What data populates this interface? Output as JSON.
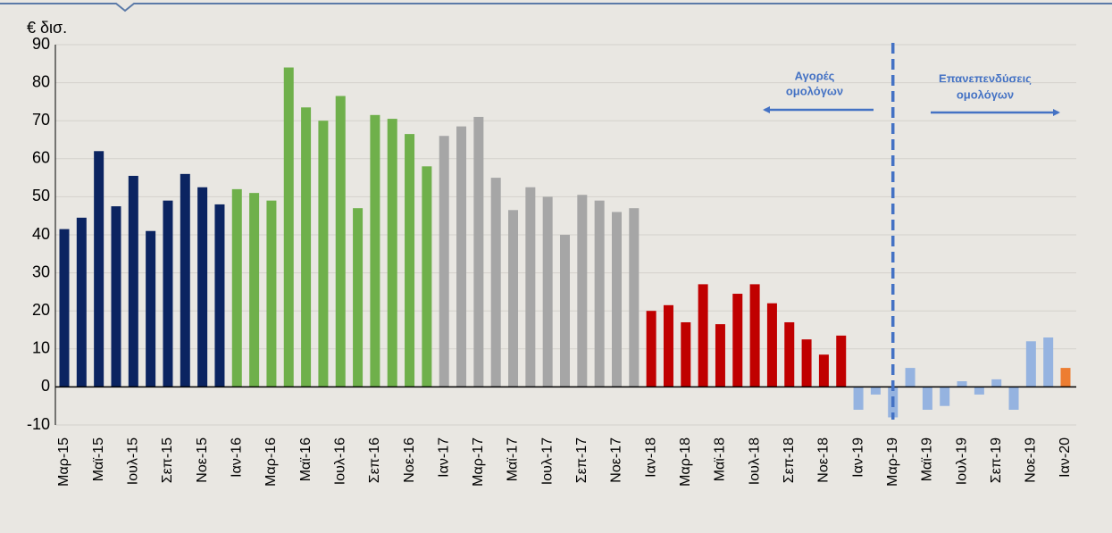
{
  "chart_data": {
    "type": "bar",
    "y_label": "€ δισ.",
    "categories": [
      "Μαρ-15",
      null,
      "Μαϊ-15",
      null,
      "Ιουλ-15",
      null,
      "Σεπ-15",
      null,
      "Νοε-15",
      null,
      "Ιαν-16",
      null,
      "Μαρ-16",
      null,
      "Μαϊ-16",
      null,
      "Ιουλ-16",
      null,
      "Σεπ-16",
      null,
      "Νοε-16",
      null,
      "Ιαν-17",
      null,
      "Μαρ-17",
      null,
      "Μαϊ-17",
      null,
      "Ιουλ-17",
      null,
      "Σεπ-17",
      null,
      "Νοε-17",
      null,
      "Ιαν-18",
      null,
      "Μαρ-18",
      null,
      "Μαϊ-18",
      null,
      "Ιουλ-18",
      null,
      "Σεπ-18",
      null,
      "Νοε-18",
      null,
      "Ιαν-19",
      null,
      "Μαρ-19",
      null,
      "Μαϊ-19",
      null,
      "Ιουλ-19",
      null,
      "Σεπ-19",
      null,
      "Νοε-19",
      null,
      "Ιαν-20"
    ],
    "values": [
      41.5,
      44.5,
      62,
      47.5,
      55.5,
      41,
      49,
      56,
      52.5,
      48,
      52,
      51,
      49,
      84,
      73.5,
      70,
      76.5,
      47,
      71.5,
      70.5,
      66.5,
      58,
      66,
      68.5,
      71,
      55,
      46.5,
      52.5,
      50,
      40,
      50.5,
      49,
      46,
      47,
      20,
      21.5,
      17,
      27,
      16.5,
      24.5,
      27,
      22,
      17,
      12.5,
      8.5,
      13.5,
      -6,
      -2,
      -8,
      5,
      -6,
      -5,
      1.5,
      -2,
      2,
      -6,
      12,
      13,
      5
    ],
    "colors": [
      "#0b2461",
      "#0b2461",
      "#0b2461",
      "#0b2461",
      "#0b2461",
      "#0b2461",
      "#0b2461",
      "#0b2461",
      "#0b2461",
      "#0b2461",
      "#6fb04b",
      "#6fb04b",
      "#6fb04b",
      "#6fb04b",
      "#6fb04b",
      "#6fb04b",
      "#6fb04b",
      "#6fb04b",
      "#6fb04b",
      "#6fb04b",
      "#6fb04b",
      "#6fb04b",
      "#a6a6a6",
      "#a6a6a6",
      "#a6a6a6",
      "#a6a6a6",
      "#a6a6a6",
      "#a6a6a6",
      "#a6a6a6",
      "#a6a6a6",
      "#a6a6a6",
      "#a6a6a6",
      "#a6a6a6",
      "#a6a6a6",
      "#c00000",
      "#c00000",
      "#c00000",
      "#c00000",
      "#c00000",
      "#c00000",
      "#c00000",
      "#c00000",
      "#c00000",
      "#c00000",
      "#c00000",
      "#c00000",
      "#95b3e0",
      "#95b3e0",
      "#95b3e0",
      "#95b3e0",
      "#95b3e0",
      "#95b3e0",
      "#95b3e0",
      "#95b3e0",
      "#95b3e0",
      "#95b3e0",
      "#95b3e0",
      "#95b3e0",
      "#ed7d31"
    ],
    "ylim": [
      -10,
      90
    ],
    "yticks": [
      -10,
      0,
      10,
      20,
      30,
      40,
      50,
      60,
      70,
      80,
      90
    ],
    "grid": true,
    "annotations": [
      {
        "lines": [
          "Αγορές",
          "ομολόγων"
        ]
      },
      {
        "lines": [
          "Επανεπενδύσεις",
          "ομολόγων"
        ]
      }
    ]
  }
}
